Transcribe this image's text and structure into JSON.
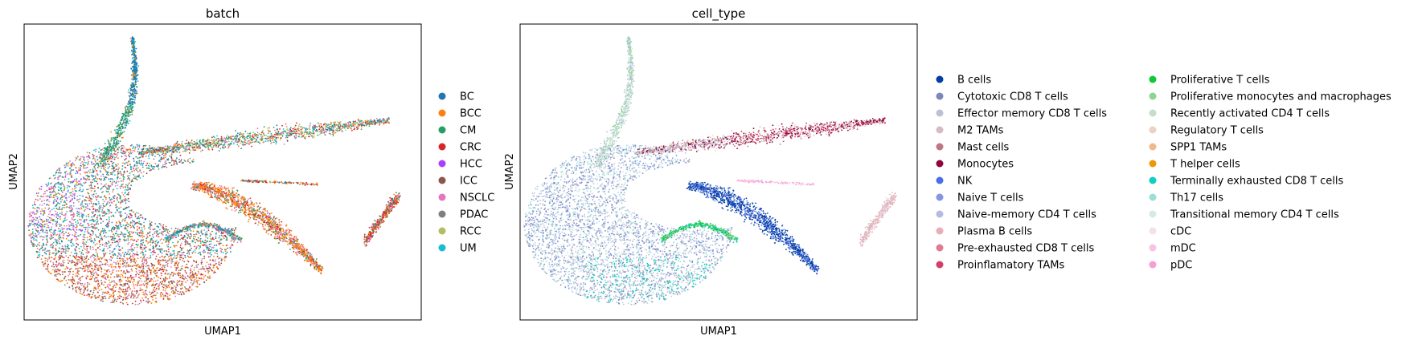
{
  "chart_data": [
    {
      "type": "scatter",
      "title": "batch",
      "xlabel": "UMAP1",
      "ylabel": "UMAP2",
      "grid": false,
      "legend_placement": "right",
      "legend": [
        {
          "label": "BC",
          "color": "#1f77b4"
        },
        {
          "label": "BCC",
          "color": "#ff7f0e"
        },
        {
          "label": "CM",
          "color": "#279e68"
        },
        {
          "label": "CRC",
          "color": "#d62728"
        },
        {
          "label": "HCC",
          "color": "#aa40fc"
        },
        {
          "label": "ICC",
          "color": "#8c564b"
        },
        {
          "label": "NSCLC",
          "color": "#e377c2"
        },
        {
          "label": "PDAC",
          "color": "#7f7f7f"
        },
        {
          "label": "RCC",
          "color": "#b5bd61"
        },
        {
          "label": "UM",
          "color": "#17becf"
        }
      ]
    },
    {
      "type": "scatter",
      "title": "cell_type",
      "xlabel": "UMAP1",
      "ylabel": "UMAP2",
      "grid": false,
      "legend_placement": "right",
      "legend": [
        {
          "label": "B cells",
          "color": "#023fa5"
        },
        {
          "label": "Cytotoxic CD8 T cells",
          "color": "#7d87b9"
        },
        {
          "label": "Effector memory CD8 T cells",
          "color": "#bec1d4"
        },
        {
          "label": "M2 TAMs",
          "color": "#d6bcc0"
        },
        {
          "label": "Mast cells",
          "color": "#bb7784"
        },
        {
          "label": "Monocytes",
          "color": "#8e063b"
        },
        {
          "label": "NK",
          "color": "#4a6fe3"
        },
        {
          "label": "Naive T cells",
          "color": "#8595e1"
        },
        {
          "label": "Naive-memory CD4 T cells",
          "color": "#b5bbe3"
        },
        {
          "label": "Plasma B cells",
          "color": "#e6afb9"
        },
        {
          "label": "Pre-exhausted CD8 T cells",
          "color": "#e07b91"
        },
        {
          "label": "Proinflamatory TAMs",
          "color": "#d33f6a"
        },
        {
          "label": "Proliferative T cells",
          "color": "#11c638"
        },
        {
          "label": "Proliferative monocytes and macrophages",
          "color": "#8dd593"
        },
        {
          "label": "Recently activated CD4 T cells",
          "color": "#c6dec7"
        },
        {
          "label": "Regulatory T cells",
          "color": "#ead3c6"
        },
        {
          "label": "SPP1 TAMs",
          "color": "#f0b98d"
        },
        {
          "label": "T helper cells",
          "color": "#ef9708"
        },
        {
          "label": "Terminally exhausted CD8 T cells",
          "color": "#0fcfc0"
        },
        {
          "label": "Th17 cells",
          "color": "#9cded6"
        },
        {
          "label": "Transitional memory CD4 T cells",
          "color": "#d5eae7"
        },
        {
          "label": "cDC",
          "color": "#f3e1eb"
        },
        {
          "label": "mDC",
          "color": "#f6c4e1"
        },
        {
          "label": "pDC",
          "color": "#f79cd4"
        }
      ]
    }
  ]
}
